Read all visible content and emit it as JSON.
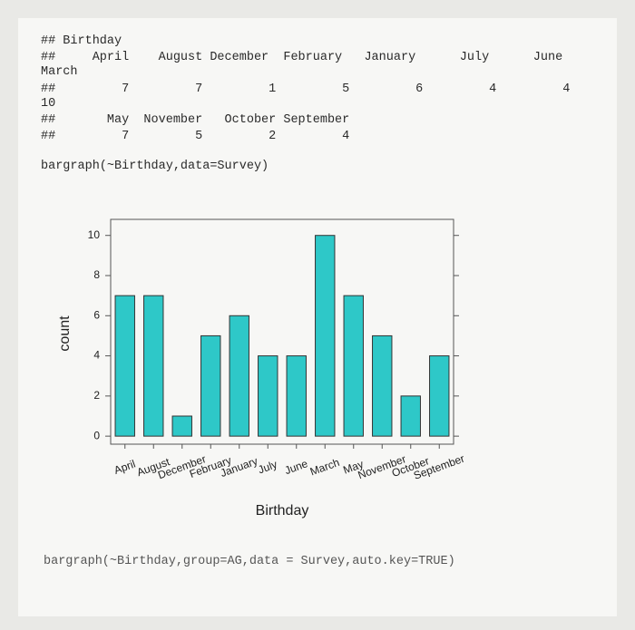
{
  "console": {
    "lines": [
      "## Birthday",
      "##     April    August December  February   January      July      June",
      "March",
      "##         7         7         1         5         6         4         4",
      "10",
      "##       May  November   October September",
      "##         7         5         2         4",
      "bargraph(~Birthday,data=Survey)"
    ],
    "footer": "bargraph(~Birthday,group=AG,data = Survey,auto.key=TRUE)"
  },
  "chart_data": {
    "type": "bar",
    "categories": [
      "April",
      "August",
      "December",
      "February",
      "January",
      "July",
      "June",
      "March",
      "May",
      "November",
      "October",
      "September"
    ],
    "values": [
      7,
      7,
      1,
      5,
      6,
      4,
      4,
      10,
      7,
      5,
      2,
      4
    ],
    "color": "#2ec8c8",
    "xlabel": "Birthday",
    "ylabel": "count",
    "ylim": [
      -0.4,
      10.8
    ],
    "yticks": [
      0,
      2,
      4,
      6,
      8,
      10
    ]
  }
}
